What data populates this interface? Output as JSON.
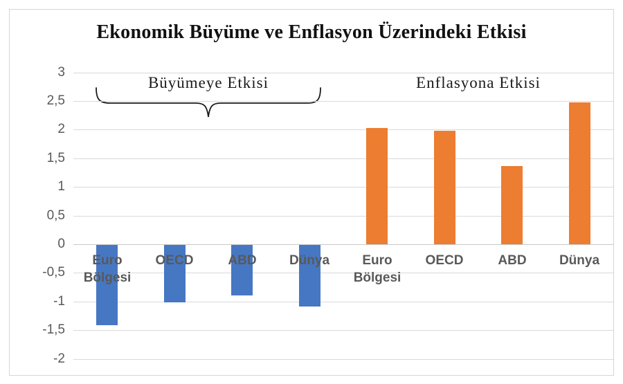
{
  "title": "Ekonomik Büyüme ve Enflasyon Üzerindeki Etkisi",
  "chart_data": {
    "type": "bar",
    "title": "Ekonomik Büyüme ve Enflasyon Üzerindeki Etkisi",
    "ylim": [
      -2,
      3
    ],
    "ytick_step": 0.5,
    "grid": true,
    "legend": "none",
    "yticks": [
      {
        "v": 3,
        "label": "3"
      },
      {
        "v": 2.5,
        "label": "2,5"
      },
      {
        "v": 2,
        "label": "2"
      },
      {
        "v": 1.5,
        "label": "1,5"
      },
      {
        "v": 1,
        "label": "1"
      },
      {
        "v": 0.5,
        "label": "0,5"
      },
      {
        "v": 0,
        "label": "0"
      },
      {
        "v": -0.5,
        "label": "-0,5"
      },
      {
        "v": -1,
        "label": "-1"
      },
      {
        "v": -1.5,
        "label": "-1,5"
      },
      {
        "v": -2,
        "label": "-2"
      }
    ],
    "groups": [
      {
        "key": "growth",
        "label": "Büyümeye Etkisi",
        "color": "#4677c2",
        "categories": [
          "Euro Bölgesi",
          "OECD",
          "ABD",
          "Dünya"
        ],
        "values": [
          -1.4,
          -1.0,
          -0.88,
          -1.08
        ]
      },
      {
        "key": "inflation",
        "label": "Enflasyona Etkisi",
        "color": "#ed7d31",
        "categories": [
          "Euro Bölgesi",
          "OECD",
          "ABD",
          "Dünya"
        ],
        "values": [
          2.03,
          1.98,
          1.36,
          2.47
        ]
      }
    ],
    "colors": {
      "growth_bar": "#4677c2",
      "inflation_bar": "#ed7d31",
      "gridline": "#d9d9d9",
      "axis_text": "#595959",
      "category_text": "#595959",
      "title_text": "#111111",
      "frame_border": "#d6d6d6"
    }
  }
}
